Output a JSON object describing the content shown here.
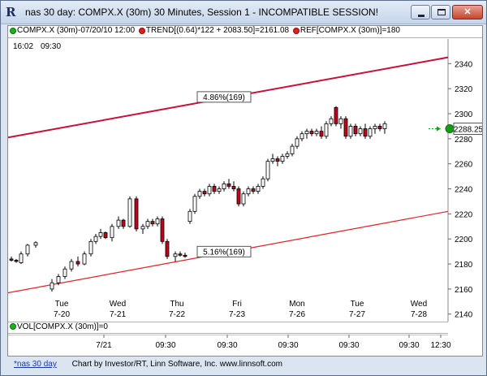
{
  "window": {
    "title": "nas 30 day: COMPX.X (30m) 30 Minutes, Session 1 - INCOMPATIBLE SESSION!",
    "icon": "chart-r-icon",
    "buttons": [
      "minimize-icon",
      "maximize-icon",
      "close-icon"
    ],
    "close_glyph": "✕"
  },
  "legend": {
    "symbol": "COMPX.X (30m)-07/20/10 12:00",
    "trend": "TREND[(0.64)*122 + 2083.50]=2161.08",
    "ref": "REF[COMPX.X (30m)]=180"
  },
  "chart": {
    "time_label": "16:02",
    "time_label2": "09:30",
    "current_price": "2288.25",
    "upper_channel_label": "4.86%(169)",
    "lower_channel_label": "5.16%(169)",
    "colors": {
      "up": "#ffffff",
      "down": "#c0001a",
      "channel_upper": "#c8103a",
      "channel_lower": "#e2202a",
      "price_marker": "#169c16"
    }
  },
  "volume": {
    "label": "VOL[COMPX.X (30m)]=0"
  },
  "time_axis": [
    "7/21",
    "09:30",
    "09:30",
    "09:30",
    "09:30",
    "09:30",
    "12:30"
  ],
  "status_bar": {
    "tab": "*nas 30 day",
    "credit": "Chart by Investor/RT, Linn Software, Inc. www.linnsoft.com"
  },
  "chart_data": {
    "type": "candlestick",
    "y_ticks": [
      2140,
      2160,
      2180,
      2200,
      2220,
      2240,
      2260,
      2280,
      2300,
      2320,
      2340
    ],
    "ylim": [
      2134,
      2348
    ],
    "day_labels": [
      {
        "day": "Tue",
        "date": "7-20"
      },
      {
        "day": "Wed",
        "date": "7-21"
      },
      {
        "day": "Thu",
        "date": "7-22"
      },
      {
        "day": "Fri",
        "date": "7-23"
      },
      {
        "day": "Mon",
        "date": "7-26"
      },
      {
        "day": "Tue",
        "date": "7-27"
      },
      {
        "day": "Wed",
        "date": "7-28"
      }
    ],
    "channels": [
      {
        "name": "4.86%(169)",
        "start": 2281,
        "end": 2345
      },
      {
        "name": "5.16%(169)",
        "start": 2157,
        "end": 2222
      }
    ],
    "candles": [
      [
        2184,
        2186,
        2182,
        2183
      ],
      [
        2183,
        2184,
        2181,
        2182
      ],
      [
        2181,
        2190,
        2180,
        2188
      ],
      [
        2188,
        2196,
        2186,
        2195
      ],
      [
        2195,
        2198,
        2193,
        2197
      ],
      [
        2160,
        2168,
        2158,
        2165
      ],
      [
        2165,
        2172,
        2163,
        2170
      ],
      [
        2170,
        2178,
        2168,
        2176
      ],
      [
        2176,
        2184,
        2174,
        2182
      ],
      [
        2182,
        2186,
        2178,
        2180
      ],
      [
        2180,
        2190,
        2179,
        2188
      ],
      [
        2188,
        2200,
        2186,
        2198
      ],
      [
        2198,
        2204,
        2196,
        2202
      ],
      [
        2202,
        2208,
        2200,
        2205
      ],
      [
        2205,
        2206,
        2200,
        2201
      ],
      [
        2201,
        2212,
        2198,
        2210
      ],
      [
        2210,
        2218,
        2208,
        2215
      ],
      [
        2215,
        2216,
        2208,
        2210
      ],
      [
        2210,
        2234,
        2209,
        2232
      ],
      [
        2232,
        2234,
        2206,
        2208
      ],
      [
        2208,
        2212,
        2204,
        2210
      ],
      [
        2210,
        2216,
        2208,
        2214
      ],
      [
        2214,
        2216,
        2210,
        2212
      ],
      [
        2212,
        2218,
        2210,
        2216
      ],
      [
        2216,
        2218,
        2196,
        2198
      ],
      [
        2198,
        2200,
        2184,
        2186
      ],
      [
        2186,
        2190,
        2182,
        2188
      ],
      [
        2188,
        2190,
        2186,
        2187
      ],
      [
        2187,
        2189,
        2185,
        2186
      ],
      [
        2214,
        2224,
        2212,
        2222
      ],
      [
        2222,
        2236,
        2220,
        2234
      ],
      [
        2234,
        2240,
        2232,
        2238
      ],
      [
        2238,
        2240,
        2234,
        2236
      ],
      [
        2236,
        2244,
        2234,
        2242
      ],
      [
        2242,
        2244,
        2236,
        2238
      ],
      [
        2238,
        2242,
        2236,
        2240
      ],
      [
        2240,
        2246,
        2238,
        2244
      ],
      [
        2244,
        2248,
        2240,
        2242
      ],
      [
        2242,
        2246,
        2238,
        2240
      ],
      [
        2240,
        2242,
        2226,
        2228
      ],
      [
        2228,
        2238,
        2226,
        2236
      ],
      [
        2236,
        2242,
        2234,
        2240
      ],
      [
        2240,
        2242,
        2236,
        2238
      ],
      [
        2238,
        2244,
        2236,
        2242
      ],
      [
        2242,
        2250,
        2240,
        2248
      ],
      [
        2248,
        2264,
        2246,
        2262
      ],
      [
        2262,
        2268,
        2260,
        2264
      ],
      [
        2264,
        2266,
        2258,
        2262
      ],
      [
        2262,
        2268,
        2260,
        2266
      ],
      [
        2266,
        2270,
        2264,
        2268
      ],
      [
        2268,
        2276,
        2266,
        2274
      ],
      [
        2274,
        2282,
        2272,
        2280
      ],
      [
        2280,
        2286,
        2278,
        2284
      ],
      [
        2284,
        2288,
        2280,
        2286
      ],
      [
        2286,
        2288,
        2282,
        2284
      ],
      [
        2284,
        2288,
        2282,
        2286
      ],
      [
        2286,
        2290,
        2280,
        2282
      ],
      [
        2282,
        2294,
        2280,
        2292
      ],
      [
        2292,
        2298,
        2290,
        2296
      ],
      [
        2305,
        2306,
        2290,
        2292
      ],
      [
        2292,
        2298,
        2288,
        2296
      ],
      [
        2296,
        2298,
        2280,
        2282
      ],
      [
        2282,
        2292,
        2280,
        2290
      ],
      [
        2290,
        2292,
        2282,
        2284
      ],
      [
        2284,
        2290,
        2282,
        2288
      ],
      [
        2288,
        2292,
        2280,
        2282
      ],
      [
        2282,
        2290,
        2280,
        2288
      ],
      [
        2288,
        2292,
        2284,
        2290
      ],
      [
        2290,
        2292,
        2286,
        2288
      ],
      [
        2288,
        2294,
        2284,
        2292
      ]
    ]
  }
}
